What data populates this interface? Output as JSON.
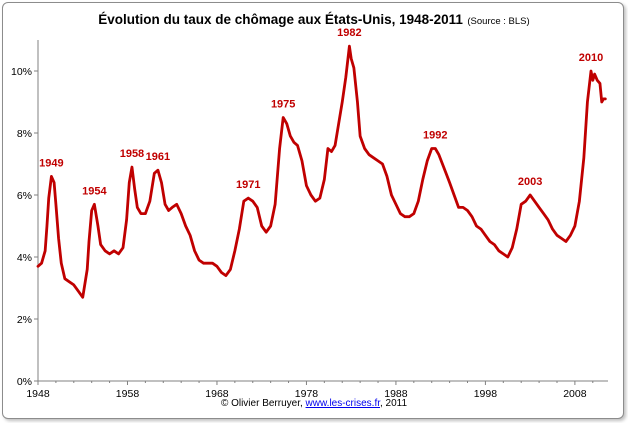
{
  "chart_data": {
    "type": "line",
    "title": "Évolution du taux de chômage aux États-Unis, 1948-2011",
    "source_note": "(Source : BLS)",
    "xlabel": "",
    "ylabel": "",
    "xlim": [
      1948,
      2011.7
    ],
    "ylim": [
      0,
      11
    ],
    "x_ticks": [
      1948,
      1958,
      1968,
      1978,
      1988,
      1998,
      2008
    ],
    "x_tick_labels": [
      "1948",
      "1958",
      "1968",
      "1978",
      "1988",
      "1998",
      "2008"
    ],
    "y_ticks": [
      0,
      2,
      4,
      6,
      8,
      10
    ],
    "y_tick_labels": [
      "0%",
      "2%",
      "4%",
      "6%",
      "8%",
      "10%"
    ],
    "grid": false,
    "line_color": "#c00000",
    "series": [
      {
        "x": [
          1948.0,
          1948.4,
          1948.8,
          1949.0,
          1949.2,
          1949.5,
          1949.8,
          1950.0,
          1950.3,
          1950.6,
          1951.0,
          1951.5,
          1952.0,
          1952.5,
          1953.0,
          1953.5,
          1953.7,
          1954.0,
          1954.3,
          1954.7,
          1955.0,
          1955.5,
          1956.0,
          1956.5,
          1957.0,
          1957.5,
          1957.9,
          1958.2,
          1958.5,
          1958.8,
          1959.1,
          1959.5,
          1960.0,
          1960.5,
          1961.0,
          1961.4,
          1961.8,
          1962.2,
          1962.6,
          1963.0,
          1963.5,
          1964.0,
          1964.5,
          1965.0,
          1965.5,
          1966.0,
          1966.5,
          1967.0,
          1967.5,
          1968.0,
          1968.5,
          1969.0,
          1969.5,
          1970.0,
          1970.5,
          1971.0,
          1971.5,
          1972.0,
          1972.5,
          1973.0,
          1973.5,
          1974.0,
          1974.5,
          1975.0,
          1975.4,
          1975.8,
          1976.2,
          1976.6,
          1977.0,
          1977.5,
          1978.0,
          1978.5,
          1979.0,
          1979.5,
          1980.0,
          1980.4,
          1980.8,
          1981.2,
          1981.6,
          1982.0,
          1982.4,
          1982.8,
          1983.0,
          1983.3,
          1983.7,
          1984.0,
          1984.5,
          1985.0,
          1985.5,
          1986.0,
          1986.5,
          1987.0,
          1987.5,
          1988.0,
          1988.5,
          1989.0,
          1989.5,
          1990.0,
          1990.5,
          1991.0,
          1991.5,
          1992.0,
          1992.4,
          1992.8,
          1993.2,
          1993.6,
          1994.0,
          1994.5,
          1995.0,
          1995.5,
          1996.0,
          1996.5,
          1997.0,
          1997.5,
          1998.0,
          1998.5,
          1999.0,
          1999.5,
          2000.0,
          2000.5,
          2001.0,
          2001.5,
          2002.0,
          2002.5,
          2003.0,
          2003.5,
          2004.0,
          2004.5,
          2005.0,
          2005.5,
          2006.0,
          2006.5,
          2007.0,
          2007.5,
          2008.0,
          2008.5,
          2009.0,
          2009.4,
          2009.8,
          2010.0,
          2010.2,
          2010.5,
          2010.8,
          2011.0,
          2011.2,
          2011.4
        ],
        "y": [
          3.7,
          3.8,
          4.2,
          5.0,
          5.9,
          6.6,
          6.4,
          5.7,
          4.6,
          3.8,
          3.3,
          3.2,
          3.1,
          2.9,
          2.7,
          3.6,
          4.5,
          5.5,
          5.7,
          5.0,
          4.4,
          4.2,
          4.1,
          4.2,
          4.1,
          4.3,
          5.2,
          6.4,
          6.9,
          6.2,
          5.6,
          5.4,
          5.4,
          5.8,
          6.7,
          6.8,
          6.4,
          5.7,
          5.5,
          5.6,
          5.7,
          5.4,
          5.0,
          4.7,
          4.2,
          3.9,
          3.8,
          3.8,
          3.8,
          3.7,
          3.5,
          3.4,
          3.6,
          4.2,
          4.9,
          5.8,
          5.9,
          5.8,
          5.6,
          5.0,
          4.8,
          5.0,
          5.7,
          7.5,
          8.5,
          8.3,
          7.9,
          7.7,
          7.6,
          7.1,
          6.3,
          6.0,
          5.8,
          5.9,
          6.5,
          7.5,
          7.4,
          7.6,
          8.3,
          9.0,
          9.8,
          10.8,
          10.4,
          10.1,
          9.0,
          7.9,
          7.5,
          7.3,
          7.2,
          7.1,
          7.0,
          6.6,
          6.0,
          5.7,
          5.4,
          5.3,
          5.3,
          5.4,
          5.8,
          6.5,
          7.1,
          7.5,
          7.5,
          7.3,
          7.0,
          6.7,
          6.4,
          6.0,
          5.6,
          5.6,
          5.5,
          5.3,
          5.0,
          4.9,
          4.7,
          4.5,
          4.4,
          4.2,
          4.1,
          4.0,
          4.3,
          4.9,
          5.7,
          5.8,
          6.0,
          5.8,
          5.6,
          5.4,
          5.2,
          4.9,
          4.7,
          4.6,
          4.5,
          4.7,
          5.0,
          5.8,
          7.2,
          9.0,
          10.0,
          9.7,
          9.9,
          9.7,
          9.6,
          9.0,
          9.1,
          9.1
        ]
      }
    ],
    "annotations": [
      {
        "text": "1949",
        "x": 1949.5,
        "y": 6.6
      },
      {
        "text": "1954",
        "x": 1954.3,
        "y": 5.7
      },
      {
        "text": "1958",
        "x": 1958.5,
        "y": 6.9
      },
      {
        "text": "1961",
        "x": 1961.4,
        "y": 6.8
      },
      {
        "text": "1971",
        "x": 1971.5,
        "y": 5.9
      },
      {
        "text": "1975",
        "x": 1975.4,
        "y": 8.5
      },
      {
        "text": "1982",
        "x": 1982.8,
        "y": 10.8
      },
      {
        "text": "1992",
        "x": 1992.4,
        "y": 7.5
      },
      {
        "text": "2003",
        "x": 2003.0,
        "y": 6.0
      },
      {
        "text": "2010",
        "x": 2009.8,
        "y": 10.0
      }
    ]
  },
  "credit": {
    "prefix": "© Olivier Berruyer, ",
    "link": "www.les-crises.fr",
    "suffix": ",  2011"
  }
}
